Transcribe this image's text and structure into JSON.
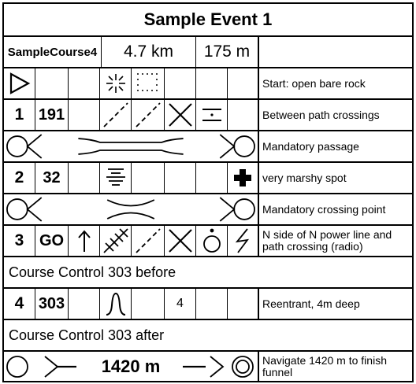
{
  "event_title": "Sample Event 1",
  "course": {
    "name": "SampleCourse4",
    "length": "4.7 km",
    "climb": "175 m"
  },
  "start": {
    "description": "Start: open bare rock"
  },
  "controls": [
    {
      "number": "1",
      "code": "191",
      "description": "Between path crossings"
    },
    {
      "number": "2",
      "code": "32",
      "description": "very marshy spot"
    },
    {
      "number": "3",
      "code": "GO",
      "description": "N side of N power line and path crossing (radio)"
    },
    {
      "number": "4",
      "code": "303",
      "dimension": "4",
      "description": "Reentrant, 4m deep"
    }
  ],
  "passages": [
    {
      "description": "Mandatory passage"
    },
    {
      "description": "Mandatory crossing point"
    }
  ],
  "notes": [
    "Course Control 303 before",
    "Course Control 303 after"
  ],
  "finish": {
    "distance_label": "1420 m",
    "description": "Navigate 1420 m to finish funnel"
  },
  "icons": [
    "start-triangle-icon",
    "open-bare-rock-icon",
    "bare-rock-dots-icon",
    "path-icon",
    "crossing-icon",
    "between-icon",
    "mandatory-passage-icon",
    "marsh-icon",
    "first-aid-icon",
    "power-line-icon",
    "north-arrow-icon",
    "radio-control-icon",
    "reentrant-icon",
    "funnel-arrow-icon",
    "finish-icon"
  ]
}
